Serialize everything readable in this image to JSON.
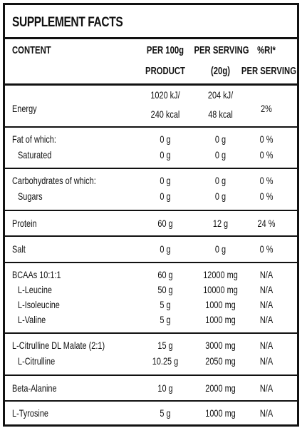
{
  "title": "SUPPLEMENT FACTS",
  "headers": {
    "content": "CONTENT",
    "per100_line1": "PER 100g",
    "per100_line2": "PRODUCT",
    "serving_line1": "PER SERVING",
    "serving_line2": "(20g)",
    "ri_line1": "%RI*",
    "ri_line2": "PER SERVING"
  },
  "rows": {
    "energy": {
      "name": "Energy",
      "p100_1": "1020 kJ/",
      "p100_2": "240 kcal",
      "srv_1": "204 kJ/",
      "srv_2": "48 kcal",
      "ri": "2%"
    },
    "fat": {
      "name": "Fat of which:",
      "p100": "0 g",
      "srv": "0 g",
      "ri": "0 %"
    },
    "saturated": {
      "name": "Saturated",
      "p100": "0 g",
      "srv": "0 g",
      "ri": "0 %"
    },
    "carbs": {
      "name": "Carbohydrates of which:",
      "p100": "0 g",
      "srv": "0 g",
      "ri": "0 %"
    },
    "sugars": {
      "name": "Sugars",
      "p100": "0 g",
      "srv": "0 g",
      "ri": "0 %"
    },
    "protein": {
      "name": "Protein",
      "p100": "60 g",
      "srv": "12 g",
      "ri": "24 %"
    },
    "salt": {
      "name": "Salt",
      "p100": "0 g",
      "srv": "0 g",
      "ri": "0 %"
    },
    "bcaa": {
      "name": "BCAAs 10:1:1",
      "p100": "60 g",
      "srv": "12000 mg",
      "ri": "N/A"
    },
    "leucine": {
      "name": "L-Leucine",
      "p100": "50 g",
      "srv": "10000 mg",
      "ri": "N/A"
    },
    "isoleucine": {
      "name": "L-Isoleucine",
      "p100": "5 g",
      "srv": "1000 mg",
      "ri": "N/A"
    },
    "valine": {
      "name": "L-Valine",
      "p100": "5 g",
      "srv": "1000 mg",
      "ri": "N/A"
    },
    "citrulline_malate": {
      "name": "L-Citrulline DL Malate (2:1)",
      "p100": "15 g",
      "srv": "3000 mg",
      "ri": "N/A"
    },
    "citrulline": {
      "name": "L-Citrulline",
      "p100": "10.25 g",
      "srv": "2050 mg",
      "ri": "N/A"
    },
    "beta_alanine": {
      "name": "Beta-Alanine",
      "p100": "10 g",
      "srv": "2000 mg",
      "ri": "N/A"
    },
    "tyrosine": {
      "name": "L-Tyrosine",
      "p100": "5 g",
      "srv": "1000 mg",
      "ri": "N/A"
    }
  }
}
